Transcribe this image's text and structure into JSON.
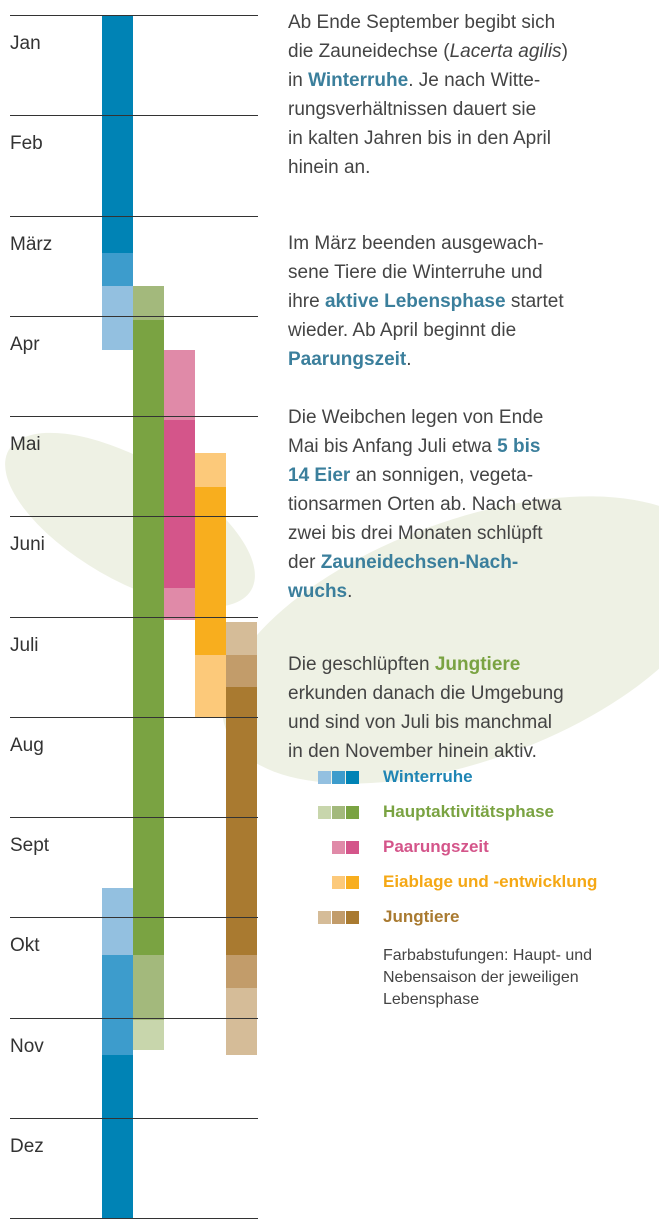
{
  "calendar": {
    "months": [
      "Jan",
      "Feb",
      "März",
      "Apr",
      "Mai",
      "Juni",
      "Juli",
      "Aug",
      "Sept",
      "Okt",
      "Nov",
      "Dez"
    ]
  },
  "paragraphs": [
    [
      [
        {
          "text": "Ab Ende September begibt sich"
        }
      ],
      [
        {
          "text": "die Zauneidechse ("
        },
        {
          "text": "Lacerta agilis",
          "style": "i"
        },
        {
          "text": ")"
        }
      ],
      [
        {
          "text": "in "
        },
        {
          "text": "Winterruhe",
          "style": "b",
          "color": "#3b7f9c"
        },
        {
          "text": ". Je nach Witte-"
        }
      ],
      [
        {
          "text": "rungsverhältnissen dauert sie"
        }
      ],
      [
        {
          "text": "in kalten Jahren bis in den April"
        }
      ],
      [
        {
          "text": "hinein an."
        }
      ]
    ],
    [
      [
        {
          "text": "Im März beenden ausgewach-"
        }
      ],
      [
        {
          "text": "sene Tiere die Winterruhe und"
        }
      ],
      [
        {
          "text": "ihre "
        },
        {
          "text": "aktive Lebensphase",
          "style": "b",
          "color": "#3b7f9c"
        },
        {
          "text": " startet"
        }
      ],
      [
        {
          "text": "wieder. Ab April beginnt die"
        }
      ],
      [
        {
          "text": "Paarungszeit",
          "style": "b",
          "color": "#3b7f9c"
        },
        {
          "text": "."
        }
      ]
    ],
    [
      [
        {
          "text": "Die Weibchen legen von Ende"
        }
      ],
      [
        {
          "text": "Mai bis Anfang Juli etwa "
        },
        {
          "text": "5 bis",
          "style": "b",
          "color": "#3b7f9c"
        }
      ],
      [
        {
          "text": "14 Eier",
          "style": "b",
          "color": "#3b7f9c"
        },
        {
          "text": " an sonnigen, vegeta-"
        }
      ],
      [
        {
          "text": "tionsarmen Orten ab. Nach etwa"
        }
      ],
      [
        {
          "text": "zwei bis drei Monaten schlüpft"
        }
      ],
      [
        {
          "text": "der "
        },
        {
          "text": "Zauneidechsen-Nach-",
          "style": "b",
          "color": "#3b7f9c"
        }
      ],
      [
        {
          "text": "wuchs",
          "style": "b",
          "color": "#3b7f9c"
        },
        {
          "text": "."
        }
      ]
    ],
    [
      [
        {
          "text": "Die geschlüpften "
        },
        {
          "text": "Jungtiere",
          "style": "b",
          "color": "#7aa342"
        }
      ],
      [
        {
          "text": "erkunden danach die Umgebung"
        }
      ],
      [
        {
          "text": "und sind von Juli bis manchmal"
        }
      ],
      [
        {
          "text": "in den November hinein aktiv."
        }
      ]
    ]
  ],
  "legend": {
    "items": [
      {
        "label": "Winterruhe",
        "colors": [
          "#93c0e0",
          "#3d9ccc",
          "#0083b5"
        ],
        "text_color": "#1f85b4"
      },
      {
        "label": "Hauptaktivitätsphase",
        "colors": [
          "#c8d6ac",
          "#a3b97c",
          "#7aa342"
        ],
        "text_color": "#7aa342"
      },
      {
        "label": "Paarungszeit",
        "colors": [
          "#e08aa8",
          "#d4558a"
        ],
        "text_color": "#d4558a"
      },
      {
        "label": "Eiablage und -entwicklung",
        "colors": [
          "#fcc97a",
          "#f8ae1e"
        ],
        "text_color": "#f5a815"
      },
      {
        "label": "Jungtiere",
        "colors": [
          "#d5bc98",
          "#c29c6a",
          "#a97a30"
        ],
        "text_color": "#a97a30"
      }
    ],
    "note": [
      "Farbabstufungen: Haupt- und",
      "Nebensaison der jeweiligen",
      "Lebensphase"
    ]
  }
}
